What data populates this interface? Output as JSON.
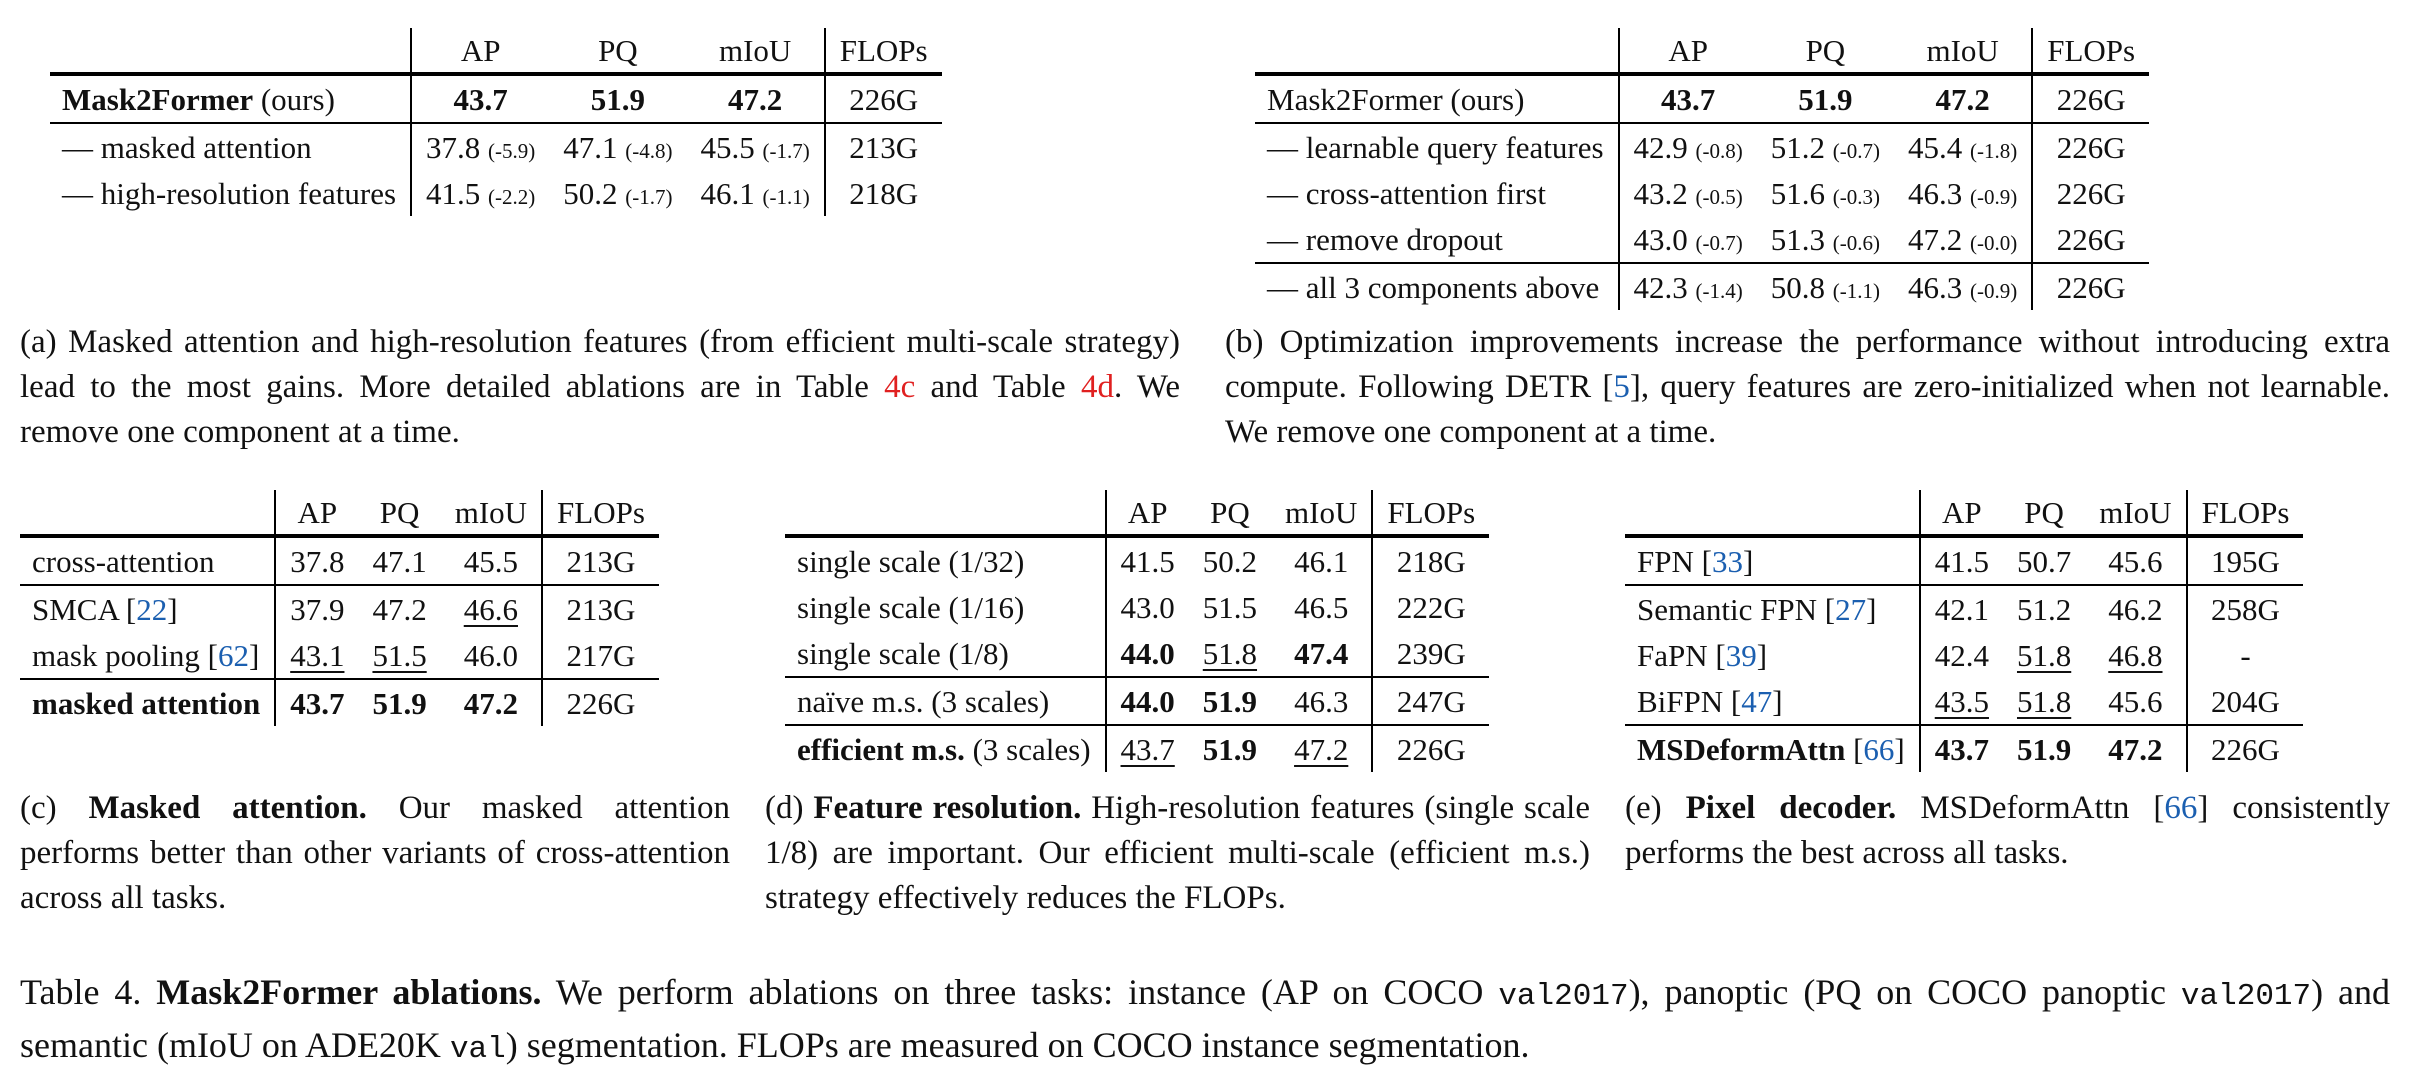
{
  "table_a": {
    "headers": [
      "AP",
      "PQ",
      "mIoU",
      "FLOPs"
    ],
    "rows": [
      {
        "name": "Mask2Former",
        "name_suffix": " (ours)",
        "name_bold": true,
        "cells": [
          {
            "v": "43.7",
            "b": true
          },
          {
            "v": "51.9",
            "b": true
          },
          {
            "v": "47.2",
            "b": true
          },
          {
            "v": "226G"
          }
        ]
      },
      {
        "name": "— masked attention",
        "sep": true,
        "cells": [
          {
            "v": "37.8",
            "d": "(-5.9)"
          },
          {
            "v": "47.1",
            "d": "(-4.8)"
          },
          {
            "v": "45.5",
            "d": "(-1.7)"
          },
          {
            "v": "213G"
          }
        ]
      },
      {
        "name": "— high-resolution features",
        "cells": [
          {
            "v": "41.5",
            "d": "(-2.2)"
          },
          {
            "v": "50.2",
            "d": "(-1.7)"
          },
          {
            "v": "46.1",
            "d": "(-1.1)"
          },
          {
            "v": "218G"
          }
        ]
      }
    ],
    "caption": [
      {
        "t": "(a) Masked attention and high-resolution features (from efficient multi-scale strategy) lead to the most gains. More detailed ablations are in Table "
      },
      {
        "t": "4c",
        "cls": "red"
      },
      {
        "t": " and Table "
      },
      {
        "t": "4d",
        "cls": "red"
      },
      {
        "t": ". We remove one component at a time."
      }
    ]
  },
  "table_b": {
    "headers": [
      "AP",
      "PQ",
      "mIoU",
      "FLOPs"
    ],
    "rows": [
      {
        "name": "Mask2Former (ours)",
        "cells": [
          {
            "v": "43.7",
            "b": true
          },
          {
            "v": "51.9",
            "b": true
          },
          {
            "v": "47.2",
            "b": true
          },
          {
            "v": "226G"
          }
        ]
      },
      {
        "name": "— learnable query features",
        "sep": true,
        "cells": [
          {
            "v": "42.9",
            "d": "(-0.8)"
          },
          {
            "v": "51.2",
            "d": "(-0.7)"
          },
          {
            "v": "45.4",
            "d": "(-1.8)"
          },
          {
            "v": "226G"
          }
        ]
      },
      {
        "name": "— cross-attention first",
        "cells": [
          {
            "v": "43.2",
            "d": "(-0.5)"
          },
          {
            "v": "51.6",
            "d": "(-0.3)"
          },
          {
            "v": "46.3",
            "d": "(-0.9)"
          },
          {
            "v": "226G"
          }
        ]
      },
      {
        "name": "— remove dropout",
        "cells": [
          {
            "v": "43.0",
            "d": "(-0.7)"
          },
          {
            "v": "51.3",
            "d": "(-0.6)"
          },
          {
            "v": "47.2",
            "d": "(-0.0)"
          },
          {
            "v": "226G"
          }
        ]
      },
      {
        "name": "— all 3 components above",
        "sep": true,
        "cells": [
          {
            "v": "42.3",
            "d": "(-1.4)"
          },
          {
            "v": "50.8",
            "d": "(-1.1)"
          },
          {
            "v": "46.3",
            "d": "(-0.9)"
          },
          {
            "v": "226G"
          }
        ]
      }
    ],
    "caption": [
      {
        "t": "(b) Optimization improvements increase the performance without introducing extra compute. Following DETR ["
      },
      {
        "t": "5",
        "cls": "cite"
      },
      {
        "t": "], query features are zero-initialized when not learnable. We remove one component at a time."
      }
    ]
  },
  "table_c": {
    "headers": [
      "AP",
      "PQ",
      "mIoU",
      "FLOPs"
    ],
    "rows": [
      {
        "name": "cross-attention",
        "cells": [
          {
            "v": "37.8"
          },
          {
            "v": "47.1"
          },
          {
            "v": "45.5"
          },
          {
            "v": "213G"
          }
        ]
      },
      {
        "name": "SMCA [",
        "cite": "22",
        "name_end": "]",
        "sep": true,
        "cells": [
          {
            "v": "37.9"
          },
          {
            "v": "47.2"
          },
          {
            "v": "46.6",
            "u": true
          },
          {
            "v": "213G"
          }
        ]
      },
      {
        "name": "mask pooling [",
        "cite": "62",
        "name_end": "]",
        "cells": [
          {
            "v": "43.1",
            "u": true
          },
          {
            "v": "51.5",
            "u": true
          },
          {
            "v": "46.0"
          },
          {
            "v": "217G"
          }
        ]
      },
      {
        "name": "masked attention",
        "name_bold": true,
        "sep": true,
        "cells": [
          {
            "v": "43.7",
            "b": true
          },
          {
            "v": "51.9",
            "b": true
          },
          {
            "v": "47.2",
            "b": true
          },
          {
            "v": "226G"
          }
        ]
      }
    ],
    "caption": [
      {
        "t": "(c) "
      },
      {
        "t": "Masked attention.",
        "cls": "b"
      },
      {
        "t": " Our masked attention performs better than other variants of cross-attention across all tasks."
      }
    ]
  },
  "table_d": {
    "headers": [
      "AP",
      "PQ",
      "mIoU",
      "FLOPs"
    ],
    "rows": [
      {
        "name": "single scale (1/32)",
        "cells": [
          {
            "v": "41.5"
          },
          {
            "v": "50.2"
          },
          {
            "v": "46.1"
          },
          {
            "v": "218G"
          }
        ]
      },
      {
        "name": "single scale (1/16)",
        "cells": [
          {
            "v": "43.0"
          },
          {
            "v": "51.5"
          },
          {
            "v": "46.5"
          },
          {
            "v": "222G"
          }
        ]
      },
      {
        "name": "single scale (1/8)",
        "cells": [
          {
            "v": "44.0",
            "b": true
          },
          {
            "v": "51.8",
            "u": true
          },
          {
            "v": "47.4",
            "b": true
          },
          {
            "v": "239G"
          }
        ]
      },
      {
        "name": "naïve m.s. (3 scales)",
        "sep": true,
        "cells": [
          {
            "v": "44.0",
            "b": true
          },
          {
            "v": "51.9",
            "b": true
          },
          {
            "v": "46.3"
          },
          {
            "v": "247G"
          }
        ]
      },
      {
        "name": "efficient m.s.",
        "name_bold": true,
        "name_suffix": " (3 scales)",
        "sep": true,
        "cells": [
          {
            "v": "43.7",
            "u": true
          },
          {
            "v": "51.9",
            "b": true
          },
          {
            "v": "47.2",
            "u": true
          },
          {
            "v": "226G"
          }
        ]
      }
    ],
    "caption": [
      {
        "t": "(d) "
      },
      {
        "t": "Feature resolution.",
        "cls": "b"
      },
      {
        "t": " High-resolution features (single scale 1/8) are important. Our efficient multi-scale (efficient m.s.) strategy effectively reduces the FLOPs."
      }
    ]
  },
  "table_e": {
    "headers": [
      "AP",
      "PQ",
      "mIoU",
      "FLOPs"
    ],
    "rows": [
      {
        "name": "FPN [",
        "cite": "33",
        "name_end": "]",
        "cells": [
          {
            "v": "41.5"
          },
          {
            "v": "50.7"
          },
          {
            "v": "45.6"
          },
          {
            "v": "195G"
          }
        ]
      },
      {
        "name": "Semantic FPN [",
        "cite": "27",
        "name_end": "]",
        "sep": true,
        "cells": [
          {
            "v": "42.1"
          },
          {
            "v": "51.2"
          },
          {
            "v": "46.2"
          },
          {
            "v": "258G"
          }
        ]
      },
      {
        "name": "FaPN [",
        "cite": "39",
        "name_end": "]",
        "cells": [
          {
            "v": "42.4"
          },
          {
            "v": "51.8",
            "u": true
          },
          {
            "v": "46.8",
            "u": true
          },
          {
            "v": "-"
          }
        ]
      },
      {
        "name": "BiFPN [",
        "cite": "47",
        "name_end": "]",
        "cells": [
          {
            "v": "43.5",
            "u": true
          },
          {
            "v": "51.8",
            "u": true
          },
          {
            "v": "45.6"
          },
          {
            "v": "204G"
          }
        ]
      },
      {
        "name": "MSDeformAttn",
        "name_bold": true,
        "name_suffix": " [",
        "cite": "66",
        "name_end": "]",
        "sep": true,
        "cells": [
          {
            "v": "43.7",
            "b": true
          },
          {
            "v": "51.9",
            "b": true
          },
          {
            "v": "47.2",
            "b": true
          },
          {
            "v": "226G"
          }
        ]
      }
    ],
    "caption": [
      {
        "t": "(e) "
      },
      {
        "t": "Pixel decoder.",
        "cls": "b"
      },
      {
        "t": " MSDeformAttn ["
      },
      {
        "t": "66",
        "cls": "cite"
      },
      {
        "t": "] consistently performs the best across all tasks."
      }
    ]
  },
  "main_caption": [
    {
      "t": "Table 4. "
    },
    {
      "t": "Mask2Former ablations.",
      "cls": "b"
    },
    {
      "t": " We perform ablations on three tasks: instance (AP on COCO "
    },
    {
      "t": "val2017",
      "cls": "mono"
    },
    {
      "t": "), panoptic (PQ on COCO panoptic "
    },
    {
      "t": "val2017",
      "cls": "mono"
    },
    {
      "t": ") and semantic (mIoU on ADE20K "
    },
    {
      "t": "val",
      "cls": "mono"
    },
    {
      "t": ") segmentation. FLOPs are measured on COCO instance segmentation."
    }
  ]
}
